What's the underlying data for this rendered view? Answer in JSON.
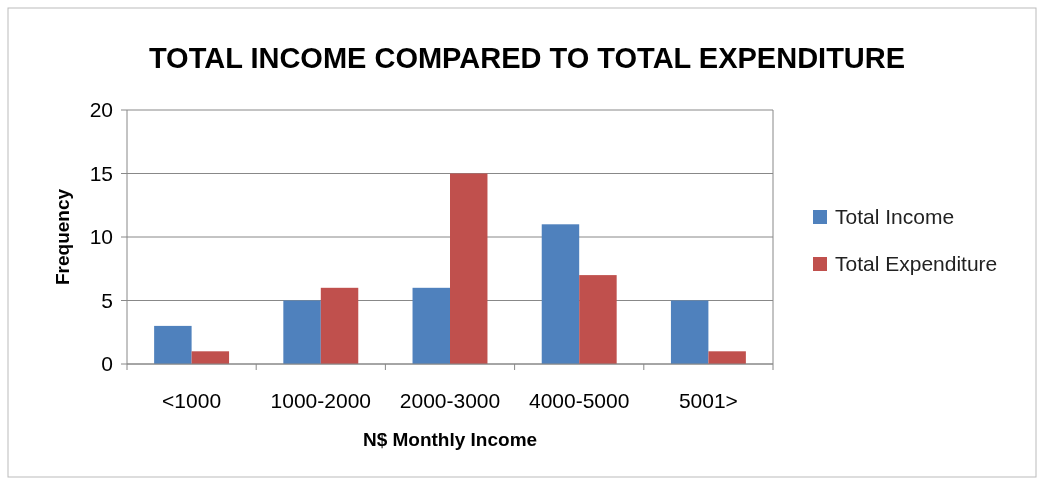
{
  "chart_data": {
    "type": "bar",
    "title": "TOTAL INCOME COMPARED TO TOTAL EXPENDITURE",
    "xlabel": "N$ Monthly Income",
    "ylabel": "Frequency",
    "categories": [
      "<1000",
      "1000-2000",
      "2000-3000",
      "4000-5000",
      "5001>"
    ],
    "series": [
      {
        "name": "Total Income",
        "color": "#4f81bd",
        "values": [
          3,
          5,
          6,
          11,
          5
        ]
      },
      {
        "name": "Total Expenditure",
        "color": "#c0504d",
        "values": [
          1,
          6,
          15,
          7,
          1
        ]
      }
    ],
    "ylim": [
      0,
      20
    ],
    "yticks": [
      0,
      5,
      10,
      15,
      20
    ],
    "grid": "y",
    "legend": "right"
  }
}
